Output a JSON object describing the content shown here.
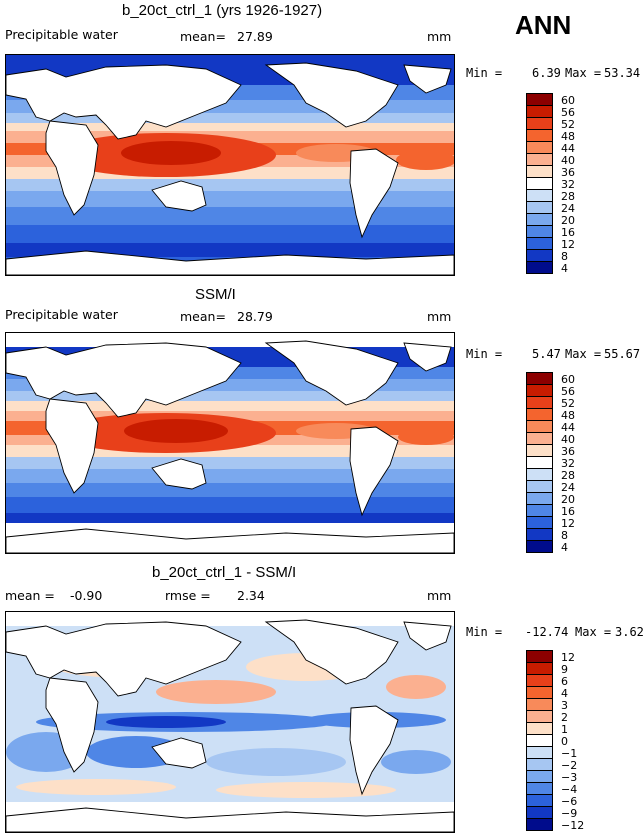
{
  "season": "ANN",
  "panels": [
    {
      "title": "b_20ct_ctrl_1 (yrs 1926-1927)",
      "left_label": "Precipitable water",
      "stat1_label": "mean=",
      "stat1_value": "27.89",
      "stat2_label": "",
      "stat2_value": "",
      "units": "mm",
      "min_label": "Min =",
      "min_value": "6.39",
      "max_label": "Max =",
      "max_value": "53.34",
      "colorbar": {
        "levels": [
          "60",
          "56",
          "52",
          "48",
          "44",
          "40",
          "36",
          "32",
          "28",
          "24",
          "20",
          "16",
          "12",
          "8",
          "4"
        ],
        "colors": [
          "#8c0000",
          "#c81c00",
          "#e8401a",
          "#f4642e",
          "#f88a5a",
          "#fbb090",
          "#fde0c8",
          "#ffffff",
          "#cde0f6",
          "#a6c6f2",
          "#7aa8ee",
          "#4f86e6",
          "#2c62dc",
          "#1238c4",
          "#000c8c"
        ]
      }
    },
    {
      "title": "SSM/I",
      "left_label": "Precipitable water",
      "stat1_label": "mean=",
      "stat1_value": "28.79",
      "stat2_label": "",
      "stat2_value": "",
      "units": "mm",
      "min_label": "Min =",
      "min_value": "5.47",
      "max_label": "Max =",
      "max_value": "55.67",
      "colorbar": {
        "levels": [
          "60",
          "56",
          "52",
          "48",
          "44",
          "40",
          "36",
          "32",
          "28",
          "24",
          "20",
          "16",
          "12",
          "8",
          "4"
        ],
        "colors": [
          "#8c0000",
          "#c81c00",
          "#e8401a",
          "#f4642e",
          "#f88a5a",
          "#fbb090",
          "#fde0c8",
          "#ffffff",
          "#cde0f6",
          "#a6c6f2",
          "#7aa8ee",
          "#4f86e6",
          "#2c62dc",
          "#1238c4",
          "#000c8c"
        ]
      }
    },
    {
      "title": "b_20ct_ctrl_1 - SSM/I",
      "left_label": "",
      "stat1_label": "mean =",
      "stat1_value": "-0.90",
      "stat2_label": "rmse =",
      "stat2_value": "2.34",
      "units": "mm",
      "min_label": "Min =",
      "min_value": "-12.74",
      "max_label": "Max =",
      "max_value": "3.62",
      "colorbar": {
        "levels": [
          "12",
          "9",
          "6",
          "4",
          "3",
          "2",
          "1",
          "0",
          "−1",
          "−2",
          "−3",
          "−4",
          "−6",
          "−9",
          "−12"
        ],
        "colors": [
          "#8c0000",
          "#c81c00",
          "#e8401a",
          "#f4642e",
          "#f88a5a",
          "#fbb090",
          "#fde0c8",
          "#ffffff",
          "#cde0f6",
          "#a6c6f2",
          "#7aa8ee",
          "#4f86e6",
          "#2c62dc",
          "#1238c4",
          "#000c8c"
        ]
      }
    }
  ]
}
